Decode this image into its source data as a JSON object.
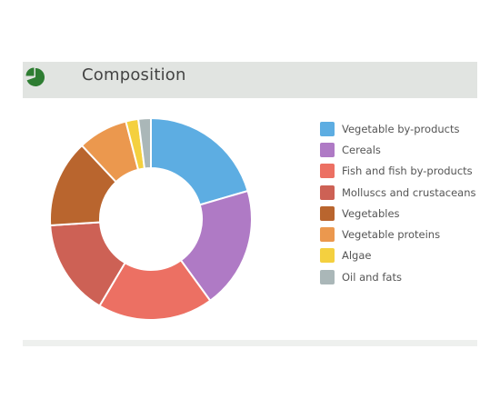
{
  "header": {
    "title": "Composition",
    "icon": "pie-chart-icon",
    "icon_color": "#2e7d32"
  },
  "chart_data": {
    "type": "pie",
    "style": "donut",
    "legend_position": "right",
    "series": [
      {
        "name": "Vegetable by-products",
        "value": 20.5,
        "color": "#5dade2"
      },
      {
        "name": "Cereals",
        "value": 19.5,
        "color": "#af7ac5"
      },
      {
        "name": "Fish and fish by-products",
        "value": 18.5,
        "color": "#ec7063"
      },
      {
        "name": "Molluscs and crustaceans",
        "value": 15.5,
        "color": "#cd6155"
      },
      {
        "name": "Vegetables",
        "value": 14.0,
        "color": "#b9652e"
      },
      {
        "name": "Vegetable proteins",
        "value": 8.0,
        "color": "#eb984e"
      },
      {
        "name": "Algae",
        "value": 2.0,
        "color": "#f4d03f"
      },
      {
        "name": "Oil and fats",
        "value": 2.0,
        "color": "#aab7b8"
      }
    ]
  }
}
